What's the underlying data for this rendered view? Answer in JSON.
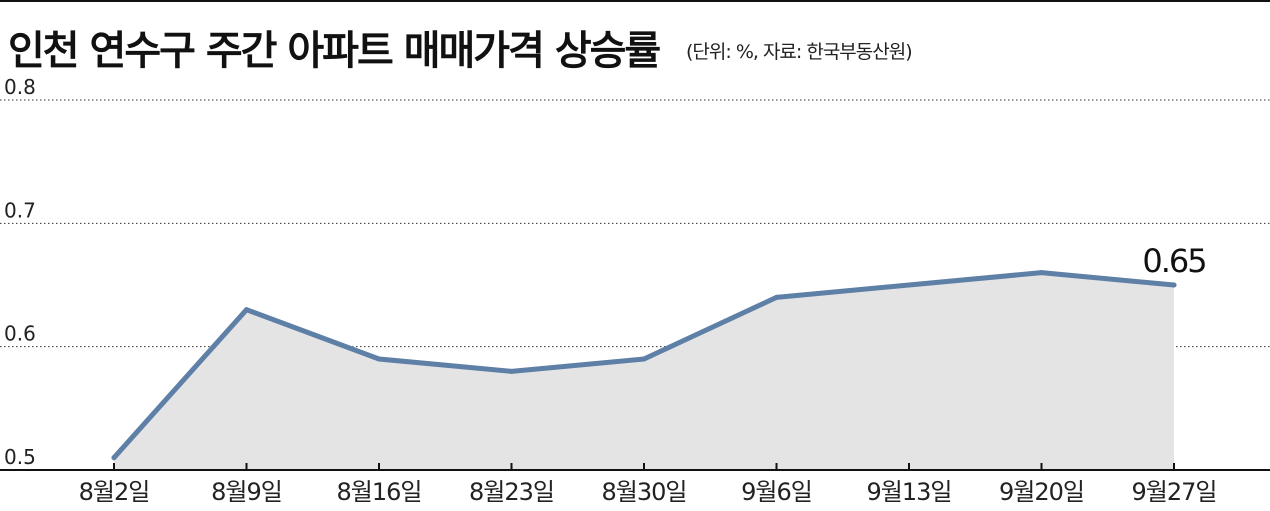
{
  "header": {
    "title": "인천 연수구 주간 아파트 매매가격 상승률",
    "subtitle": "(단위: %, 자료: 한국부동산원)"
  },
  "colors": {
    "line": "#5e7fa6",
    "area": "#e4e4e4",
    "grid": "#333333",
    "axis": "#111111"
  },
  "chart_data": {
    "type": "area",
    "title": "인천 연수구 주간 아파트 매매가격 상승률",
    "categories": [
      "8월2일",
      "8월9일",
      "8월16일",
      "8월23일",
      "8월30일",
      "9월6일",
      "9월13일",
      "9월20일",
      "9월27일"
    ],
    "series": [
      {
        "values": [
          0.51,
          0.63,
          0.59,
          0.58,
          0.59,
          0.64,
          0.65,
          0.66,
          0.65
        ]
      }
    ],
    "y_ticks": [
      "0.5",
      "0.6",
      "0.7",
      "0.8"
    ],
    "ylim": [
      0.5,
      0.8
    ],
    "grid": true,
    "grid_style": "dotted",
    "annotations": [
      {
        "category": "9월27일",
        "text": "0.65"
      }
    ]
  }
}
